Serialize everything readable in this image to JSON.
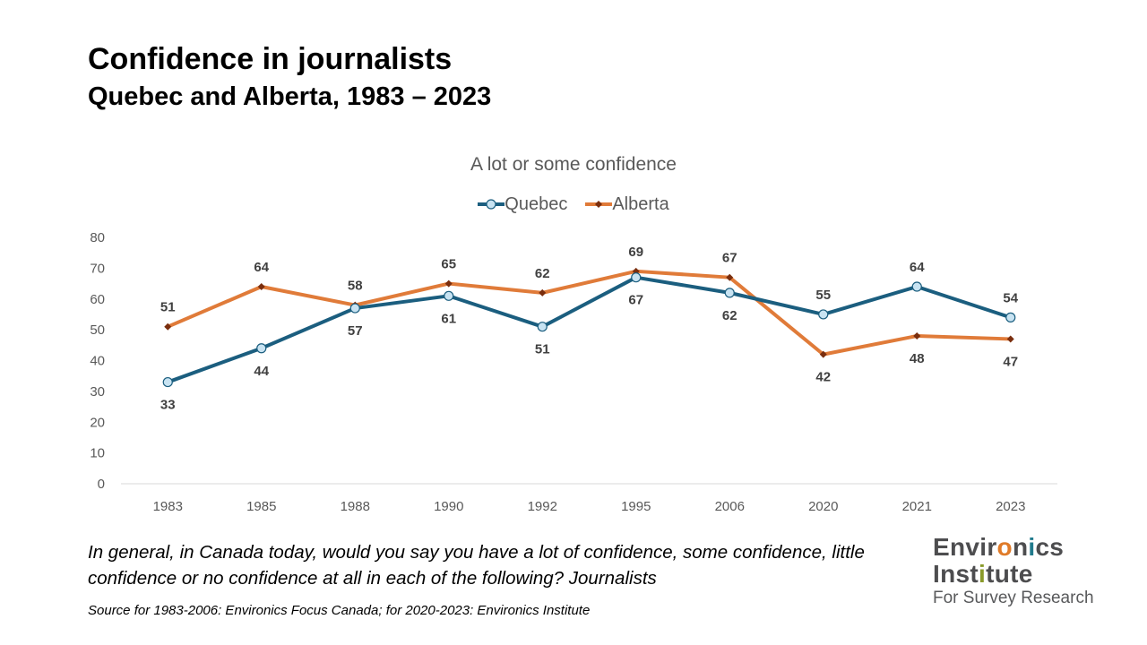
{
  "header": {
    "title": "Confidence in journalists",
    "subtitle": "Quebec and Alberta, 1983 – 2023"
  },
  "chart_data": {
    "type": "line",
    "title": "A lot or some confidence",
    "categories": [
      "1983",
      "1985",
      "1988",
      "1990",
      "1992",
      "1995",
      "2006",
      "2020",
      "2021",
      "2023"
    ],
    "series": [
      {
        "name": "Quebec",
        "color": "#1b5e7f",
        "marker": "circle",
        "marker_fill": "#c8e3f2",
        "values": [
          33,
          44,
          57,
          61,
          51,
          67,
          62,
          55,
          64,
          54
        ],
        "label_position": [
          "below",
          "below",
          "below",
          "below",
          "below",
          "below",
          "below",
          "above",
          "above",
          "above"
        ]
      },
      {
        "name": "Alberta",
        "color": "#e07b39",
        "marker": "diamond",
        "marker_fill": "#7a2e0e",
        "values": [
          51,
          64,
          58,
          65,
          62,
          69,
          67,
          42,
          48,
          47
        ],
        "label_position": [
          "above",
          "above",
          "above",
          "above",
          "above",
          "above",
          "above",
          "below",
          "below",
          "below"
        ]
      }
    ],
    "ylim": [
      0,
      80
    ],
    "yticks": [
      0,
      10,
      20,
      30,
      40,
      50,
      60,
      70,
      80
    ],
    "grid": false,
    "legend": "top-center",
    "xlabel": "",
    "ylabel": ""
  },
  "footer": {
    "question": "In general, in Canada today, would you say you have a lot of confidence, some confidence, little confidence or no confidence at all in each of the following? Journalists",
    "source": "Source for 1983-2006: Environics Focus Canada; for 2020-2023: Environics Institute"
  },
  "logo": {
    "line1": "Environics",
    "line2": "Institute",
    "line3": "For Survey Research"
  }
}
